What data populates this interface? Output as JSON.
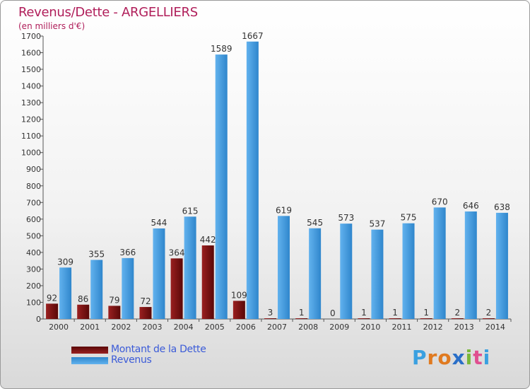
{
  "title": "Revenus/Dette - ARGELLIERS",
  "subtitle": "(en milliers d'€)",
  "colors": {
    "title": "#b01e5a",
    "debt": "#7a1010",
    "revenue": "#4fa3e3",
    "legend_text": "#3b5bd8"
  },
  "legend": {
    "debt_label": "Montant de la Dette",
    "revenue_label": "Revenus"
  },
  "logo": {
    "letters": [
      "P",
      "r",
      "o",
      "x",
      "i",
      "t",
      "i"
    ],
    "letter_colors": [
      "#3aa0e0",
      "#e07a20",
      "#e07a20",
      "#2a6fc8",
      "#7ab83a",
      "#e05090",
      "#3aa0e0"
    ]
  },
  "chart_data": {
    "type": "bar",
    "title": "Revenus/Dette - ARGELLIERS",
    "subtitle": "(en milliers d'€)",
    "categories": [
      "2000",
      "2001",
      "2002",
      "2003",
      "2004",
      "2005",
      "2006",
      "2007",
      "2008",
      "2009",
      "2010",
      "2011",
      "2012",
      "2013",
      "2014"
    ],
    "series": [
      {
        "name": "Montant de la Dette",
        "values": [
          92,
          86,
          79,
          72,
          364,
          442,
          109,
          3,
          1,
          0,
          1,
          1,
          1,
          2,
          2
        ]
      },
      {
        "name": "Revenus",
        "values": [
          309,
          355,
          366,
          544,
          615,
          1589,
          1667,
          619,
          545,
          573,
          537,
          575,
          670,
          646,
          638
        ]
      }
    ],
    "ylim": [
      0,
      1700
    ],
    "yticks": [
      0,
      100,
      200,
      300,
      400,
      500,
      600,
      700,
      800,
      900,
      1000,
      1100,
      1200,
      1300,
      1400,
      1500,
      1600,
      1700
    ],
    "grid": false,
    "legend_position": "bottom-left"
  }
}
